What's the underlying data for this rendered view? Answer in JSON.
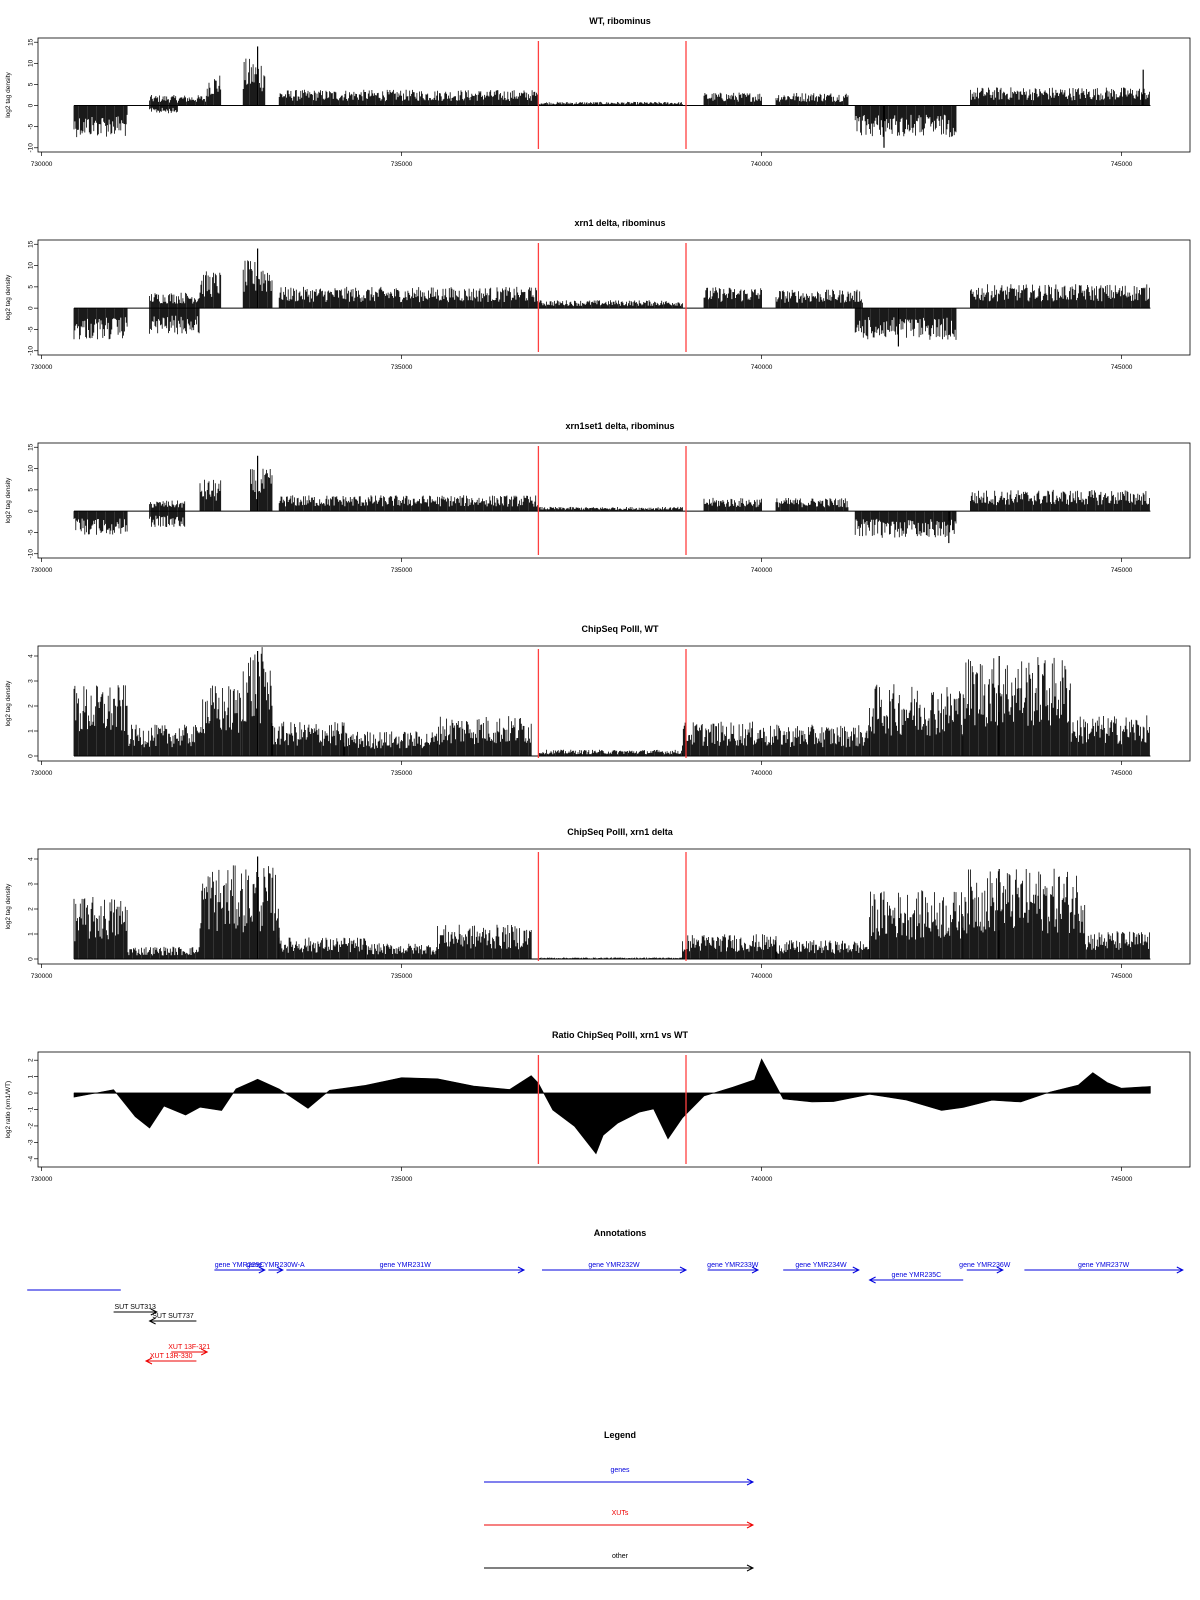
{
  "xaxis": {
    "range": [
      729950,
      745950
    ],
    "ticks": [
      730000,
      735000,
      740000,
      745000
    ],
    "tick_labels": [
      "730000",
      "735000",
      "740000",
      "745000"
    ]
  },
  "markers": {
    "color": "#ff4040",
    "positions": [
      736900,
      738950
    ]
  },
  "panels": [
    {
      "title": "WT, ribominus",
      "ylabel": "log2 tag density",
      "ylim": [
        -11,
        16
      ],
      "yticks": [
        -10,
        -5,
        0,
        5,
        10,
        15
      ],
      "ytick_labels": [
        "-10",
        "-5",
        "0",
        "5",
        "10",
        "15"
      ]
    },
    {
      "title": "xrn1 delta, ribominus",
      "ylabel": "log2 tag density",
      "ylim": [
        -11,
        16
      ],
      "yticks": [
        -10,
        -5,
        0,
        5,
        10,
        15
      ],
      "ytick_labels": [
        "-10",
        "-5",
        "0",
        "5",
        "10",
        "15"
      ]
    },
    {
      "title": "xrn1set1 delta, ribominus",
      "ylabel": "log2 tag density",
      "ylim": [
        -11,
        16
      ],
      "yticks": [
        -10,
        -5,
        0,
        5,
        10,
        15
      ],
      "ytick_labels": [
        "-10",
        "-5",
        "0",
        "5",
        "10",
        "15"
      ]
    },
    {
      "title": "ChipSeq PolII, WT",
      "ylabel": "log2 tag density",
      "ylim": [
        -0.2,
        4.4
      ],
      "yticks": [
        0,
        1,
        2,
        3,
        4
      ],
      "ytick_labels": [
        "0",
        "1",
        "2",
        "3",
        "4"
      ]
    },
    {
      "title": "ChipSeq PolII, xrn1 delta",
      "ylabel": "log2 tag density",
      "ylim": [
        -0.2,
        4.4
      ],
      "yticks": [
        0,
        1,
        2,
        3,
        4
      ],
      "ytick_labels": [
        "0",
        "1",
        "2",
        "3",
        "4"
      ]
    },
    {
      "title": "Ratio ChipSeq PolII, xrn1 vs WT",
      "ylabel": "log2 ratio (xrn1/WT)",
      "ylim": [
        -4.5,
        2.5
      ],
      "yticks": [
        -4,
        -3,
        -2,
        -1,
        0,
        1,
        2
      ],
      "ytick_labels": [
        "-4",
        "-3",
        "-2",
        "-1",
        "0",
        "1",
        "2"
      ]
    }
  ],
  "chart_data": [
    {
      "type": "bar",
      "title": "WT, ribominus",
      "ylabel": "log2 tag density",
      "ylim": [
        -11,
        16
      ],
      "xlim": [
        729950,
        745950
      ],
      "segments": [
        {
          "x": [
            730450,
            731200
          ],
          "y": -6
        },
        {
          "x": [
            731500,
            731900
          ],
          "y": -1.5
        },
        {
          "x": [
            731500,
            732300
          ],
          "y": 2
        },
        {
          "x": [
            732300,
            732500
          ],
          "y": 6
        },
        {
          "x": [
            732800,
            733100
          ],
          "y": 9
        },
        {
          "x": [
            733300,
            736900
          ],
          "y": 3
        },
        {
          "x": [
            736900,
            738900
          ],
          "y": 0.7
        },
        {
          "x": [
            739200,
            740000
          ],
          "y": 2.5
        },
        {
          "x": [
            740200,
            741200
          ],
          "y": 2.5
        },
        {
          "x": [
            741300,
            742700
          ],
          "y": -6
        },
        {
          "x": [
            742900,
            745400
          ],
          "y": 3.5
        }
      ],
      "peaks": [
        {
          "x": 733000,
          "y": 14
        },
        {
          "x": 741700,
          "y": -10
        },
        {
          "x": 745300,
          "y": 8.5
        }
      ]
    },
    {
      "type": "bar",
      "title": "xrn1 delta, ribominus",
      "ylabel": "log2 tag density",
      "ylim": [
        -11,
        16
      ],
      "xlim": [
        729950,
        745950
      ],
      "segments": [
        {
          "x": [
            730450,
            731200
          ],
          "y": -6
        },
        {
          "x": [
            731500,
            732200
          ],
          "y": -5
        },
        {
          "x": [
            731500,
            732200
          ],
          "y": 3
        },
        {
          "x": [
            732200,
            732500
          ],
          "y": 7
        },
        {
          "x": [
            732800,
            733200
          ],
          "y": 9
        },
        {
          "x": [
            733300,
            736900
          ],
          "y": 4
        },
        {
          "x": [
            736900,
            738900
          ],
          "y": 1.5
        },
        {
          "x": [
            739200,
            740000
          ],
          "y": 4
        },
        {
          "x": [
            740200,
            741400
          ],
          "y": 3.5
        },
        {
          "x": [
            741300,
            742700
          ],
          "y": -6
        },
        {
          "x": [
            742900,
            745400
          ],
          "y": 4.5
        }
      ],
      "peaks": [
        {
          "x": 733000,
          "y": 14
        },
        {
          "x": 741900,
          "y": -9
        }
      ]
    },
    {
      "type": "bar",
      "title": "xrn1set1 delta, ribominus",
      "ylabel": "log2 tag density",
      "ylim": [
        -11,
        16
      ],
      "xlim": [
        729950,
        745950
      ],
      "segments": [
        {
          "x": [
            730450,
            731200
          ],
          "y": -4.5
        },
        {
          "x": [
            731500,
            732000
          ],
          "y": -3
        },
        {
          "x": [
            731500,
            732000
          ],
          "y": 2
        },
        {
          "x": [
            732200,
            732500
          ],
          "y": 6
        },
        {
          "x": [
            732900,
            733200
          ],
          "y": 8
        },
        {
          "x": [
            733300,
            736900
          ],
          "y": 3
        },
        {
          "x": [
            736900,
            738900
          ],
          "y": 0.8
        },
        {
          "x": [
            739200,
            740000
          ],
          "y": 2.5
        },
        {
          "x": [
            740200,
            741200
          ],
          "y": 2.5
        },
        {
          "x": [
            741300,
            742700
          ],
          "y": -5
        },
        {
          "x": [
            742900,
            745400
          ],
          "y": 4
        }
      ],
      "peaks": [
        {
          "x": 733000,
          "y": 13
        },
        {
          "x": 742600,
          "y": -7.5
        }
      ]
    },
    {
      "type": "bar",
      "title": "ChipSeq PolII, WT",
      "ylabel": "log2 tag density",
      "ylim": [
        -0.2,
        4.4
      ],
      "xlim": [
        729950,
        745950
      ],
      "segments": [
        {
          "x": [
            730450,
            731200
          ],
          "y": 2.3
        },
        {
          "x": [
            731200,
            732200
          ],
          "y": 1
        },
        {
          "x": [
            732200,
            732800
          ],
          "y": 2.3
        },
        {
          "x": [
            732800,
            733200
          ],
          "y": 3.5
        },
        {
          "x": [
            733200,
            734200
          ],
          "y": 1.1
        },
        {
          "x": [
            734200,
            735500
          ],
          "y": 0.8
        },
        {
          "x": [
            735500,
            736800
          ],
          "y": 1.3
        },
        {
          "x": [
            736900,
            738900
          ],
          "y": 0.2
        },
        {
          "x": [
            738900,
            740000
          ],
          "y": 1.1
        },
        {
          "x": [
            740000,
            741500
          ],
          "y": 1
        },
        {
          "x": [
            741500,
            742800
          ],
          "y": 2.3
        },
        {
          "x": [
            742800,
            744300
          ],
          "y": 3.2
        },
        {
          "x": [
            744300,
            745400
          ],
          "y": 1.3
        }
      ],
      "peaks": [
        {
          "x": 733000,
          "y": 4.2
        },
        {
          "x": 743300,
          "y": 4
        }
      ]
    },
    {
      "type": "bar",
      "title": "ChipSeq PolII, xrn1 delta",
      "ylabel": "log2 tag density",
      "ylim": [
        -0.2,
        4.4
      ],
      "xlim": [
        729950,
        745950
      ],
      "segments": [
        {
          "x": [
            730450,
            731200
          ],
          "y": 2
        },
        {
          "x": [
            731200,
            732200
          ],
          "y": 0.4
        },
        {
          "x": [
            732200,
            733300
          ],
          "y": 3
        },
        {
          "x": [
            733300,
            734500
          ],
          "y": 0.7
        },
        {
          "x": [
            734500,
            735500
          ],
          "y": 0.5
        },
        {
          "x": [
            735500,
            736800
          ],
          "y": 1.1
        },
        {
          "x": [
            736900,
            738900
          ],
          "y": 0.05
        },
        {
          "x": [
            738900,
            740200
          ],
          "y": 0.8
        },
        {
          "x": [
            740200,
            741500
          ],
          "y": 0.6
        },
        {
          "x": [
            741500,
            742800
          ],
          "y": 2.2
        },
        {
          "x": [
            742800,
            744500
          ],
          "y": 2.9
        },
        {
          "x": [
            744500,
            745400
          ],
          "y": 0.9
        }
      ],
      "peaks": [
        {
          "x": 733000,
          "y": 4.1
        },
        {
          "x": 743300,
          "y": 3.6
        }
      ]
    },
    {
      "type": "area",
      "title": "Ratio ChipSeq PolII, xrn1 vs WT",
      "ylabel": "log2 ratio (xrn1/WT)",
      "ylim": [
        -4.5,
        2.5
      ],
      "xlim": [
        729950,
        745950
      ],
      "x": [
        730450,
        731000,
        731300,
        731500,
        731700,
        732000,
        732200,
        732500,
        732700,
        733000,
        733300,
        733700,
        734000,
        734500,
        735000,
        735500,
        736000,
        736500,
        736800,
        736900,
        737100,
        737400,
        737700,
        737800,
        738000,
        738300,
        738500,
        738700,
        738900,
        739200,
        739600,
        739900,
        740000,
        740300,
        740700,
        741000,
        741500,
        742000,
        742500,
        742800,
        743200,
        743600,
        744000,
        744400,
        744600,
        744800,
        745000,
        745400
      ],
      "y": [
        -0.2,
        0.2,
        -1.5,
        -2.2,
        -0.8,
        -1.3,
        -0.8,
        -1,
        0.3,
        0.9,
        0.2,
        -0.9,
        0.2,
        0.4,
        0.9,
        0.8,
        0.4,
        0.2,
        1,
        0.6,
        -1,
        -2,
        -3.7,
        -2.5,
        -1.8,
        -1.2,
        -1,
        -2.8,
        -1.5,
        -0.2,
        0.4,
        0.8,
        2,
        -0.4,
        -0.6,
        -0.5,
        -0.1,
        -0.4,
        -1,
        -0.8,
        -0.4,
        -0.6,
        0.1,
        0.5,
        1.2,
        0.6,
        0.3,
        0.4
      ]
    }
  ],
  "annotations": {
    "title": "Annotations",
    "genes": [
      {
        "label": "gene YMR229C",
        "start": 732400,
        "end": 733100,
        "dir": "right",
        "level": 0
      },
      {
        "label": "gene YMR230W-A",
        "start": 733150,
        "end": 733350,
        "dir": "right",
        "level": 0
      },
      {
        "label": "gene YMR231W",
        "start": 733400,
        "end": 736700,
        "dir": "right",
        "level": 0
      },
      {
        "label": "gene YMR232W",
        "start": 736950,
        "end": 738950,
        "dir": "right",
        "level": 0
      },
      {
        "label": "gene YMR233W",
        "start": 739250,
        "end": 739950,
        "dir": "right",
        "level": 0
      },
      {
        "label": "gene YMR234W",
        "start": 740300,
        "end": 741350,
        "dir": "right",
        "level": 0
      },
      {
        "label": "gene YMR235C",
        "start": 741500,
        "end": 742800,
        "dir": "left",
        "level": 1
      },
      {
        "label": "gene YMR236W",
        "start": 742850,
        "end": 743350,
        "dir": "right",
        "level": 0
      },
      {
        "label": "gene YMR237W",
        "start": 743650,
        "end": 745850,
        "dir": "right",
        "level": 0
      },
      {
        "label": "",
        "start": 729800,
        "end": 731100,
        "dir": "none",
        "level": 2
      }
    ],
    "other": [
      {
        "label": "SUT SUT313",
        "start": 731000,
        "end": 731600,
        "dir": "right",
        "level": 0
      },
      {
        "label": "SUT SUT737",
        "start": 731500,
        "end": 732150,
        "dir": "left",
        "level": 1
      }
    ],
    "xuts": [
      {
        "label": "XUT 13F-321",
        "start": 731800,
        "end": 732300,
        "dir": "right",
        "level": 0
      },
      {
        "label": "XUT 13R-330",
        "start": 731450,
        "end": 732150,
        "dir": "left",
        "level": 1
      }
    ]
  },
  "legend": {
    "title": "Legend",
    "items": [
      {
        "label": "genes",
        "color": "#0000dd"
      },
      {
        "label": "XUTs",
        "color": "#ee0000"
      },
      {
        "label": "other",
        "color": "#000000"
      }
    ]
  },
  "colors": {
    "data": "#000000",
    "genes": "#0000dd",
    "xuts": "#ee0000",
    "other": "#000000"
  }
}
